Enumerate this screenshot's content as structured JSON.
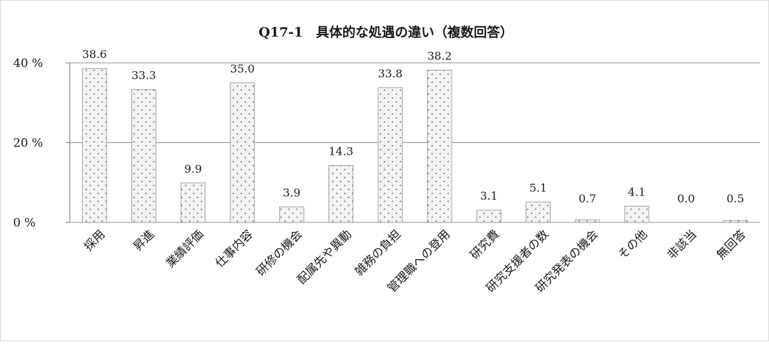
{
  "chart_data": {
    "type": "bar",
    "title": "Q17-1　具体的な処遇の違い（複数回答）",
    "xlabel": "",
    "ylabel": "",
    "ylim": [
      0,
      40
    ],
    "ytick_values": [
      0,
      20,
      40
    ],
    "ytick_labels": [
      "0 %",
      "20 %",
      "40 %"
    ],
    "grid": true,
    "legend": "none",
    "categories": [
      "採用",
      "昇進",
      "業績評価",
      "仕事内容",
      "研修の機会",
      "配属先や異動",
      "雑務の負担",
      "管理職への登用",
      "研究費",
      "研究支援者の数",
      "研究発表の機会",
      "その他",
      "非該当",
      "無回答"
    ],
    "values": [
      38.6,
      33.3,
      9.9,
      35.0,
      3.9,
      14.3,
      33.8,
      38.2,
      3.1,
      5.1,
      0.7,
      4.1,
      0.0,
      0.5
    ],
    "value_labels": [
      "38.6",
      "33.3",
      "9.9",
      "35.0",
      "3.9",
      "14.3",
      "33.8",
      "38.2",
      "3.1",
      "5.1",
      "0.7",
      "4.1",
      "0.0",
      "0.5"
    ],
    "colors": {
      "bar_fill": "#f2f2f2",
      "bar_dots": "#6e6e6e",
      "bar_stroke": "#8c8c8c",
      "grid": "#8c8c8c",
      "axis": "#6e6e6e"
    }
  }
}
